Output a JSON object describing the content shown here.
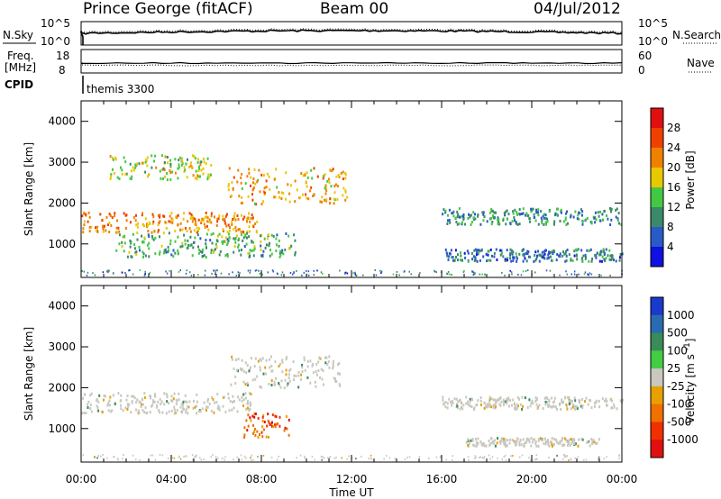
{
  "header": {
    "station": "Prince George (fitACF)",
    "beam": "Beam 00",
    "date": "04/Jul/2012"
  },
  "top_panel": {
    "left_label": "N.Sky",
    "right_label": "N.Search",
    "ticks_left": [
      "10^5",
      "10^0"
    ],
    "ticks_right": [
      "10^5",
      "10^0"
    ]
  },
  "freq_panel": {
    "left_label_1": "Freq.",
    "left_label_2": "[MHz]",
    "ticks_left": [
      "18",
      "8"
    ],
    "right_label": "Nave",
    "ticks_right": [
      "60",
      "0"
    ]
  },
  "cpid": {
    "label": "CPID",
    "value": "themis 3300"
  },
  "xaxis": {
    "label": "Time UT",
    "ticks": [
      "00:00",
      "04:00",
      "08:00",
      "12:00",
      "16:00",
      "20:00",
      "00:00"
    ]
  },
  "power_panel": {
    "ylabel": "Slant Range [km]",
    "yticks": [
      "1000",
      "2000",
      "3000",
      "4000"
    ],
    "colorbar_label": "Power [dB]",
    "colorbar_ticks": [
      "4",
      "8",
      "12",
      "16",
      "20",
      "24",
      "28"
    ],
    "colorbar_colors": [
      "#1010e0",
      "#2a5ac8",
      "#3a8a6a",
      "#44c844",
      "#e8c800",
      "#f08000",
      "#f04000",
      "#e01010"
    ]
  },
  "velocity_panel": {
    "ylabel": "Slant Range [km]",
    "yticks": [
      "1000",
      "2000",
      "3000",
      "4000"
    ],
    "colorbar_label": "Velocity [m s^-1]",
    "colorbar_ticks": [
      "1000",
      "500",
      "100",
      "25",
      "-25",
      "-100",
      "-500",
      "-1000"
    ],
    "colorbar_colors": [
      "#1a3acc",
      "#2a6ab0",
      "#3a8a5a",
      "#44cc44",
      "#c8c8c0",
      "#e8a000",
      "#f07000",
      "#f03000",
      "#e01010"
    ]
  },
  "chart_data": {
    "type": "heatmap",
    "x_unit": "hours UT",
    "x_range": [
      0,
      24
    ],
    "y_unit": "km",
    "y_range": [
      180,
      4500
    ],
    "power_features": [
      {
        "band": [
          1300,
          1800
        ],
        "t": [
          0,
          7.8
        ],
        "level": 22
      },
      {
        "band": [
          2600,
          3200
        ],
        "t": [
          1.2,
          5.8
        ],
        "level": 16
      },
      {
        "band": [
          2000,
          2900
        ],
        "t": [
          6.5,
          11.8
        ],
        "level": 20
      },
      {
        "band": [
          700,
          1300
        ],
        "t": [
          1.5,
          9.5
        ],
        "level": 12
      },
      {
        "band": [
          1500,
          1900
        ],
        "t": [
          16,
          24
        ],
        "level": 10
      },
      {
        "band": [
          600,
          900
        ],
        "t": [
          16,
          24
        ],
        "level": 8
      }
    ],
    "velocity_features": [
      {
        "band": [
          1400,
          1900
        ],
        "t": [
          0,
          7.5
        ],
        "velocity": 0
      },
      {
        "band": [
          800,
          1400
        ],
        "t": [
          7.2,
          9.2
        ],
        "velocity": -500
      },
      {
        "band": [
          2000,
          2800
        ],
        "t": [
          6.5,
          11.5
        ],
        "velocity": 0
      },
      {
        "band": [
          1500,
          1800
        ],
        "t": [
          16,
          24
        ],
        "velocity": 0
      },
      {
        "band": [
          600,
          800
        ],
        "t": [
          17,
          23
        ],
        "velocity": 0
      }
    ]
  }
}
